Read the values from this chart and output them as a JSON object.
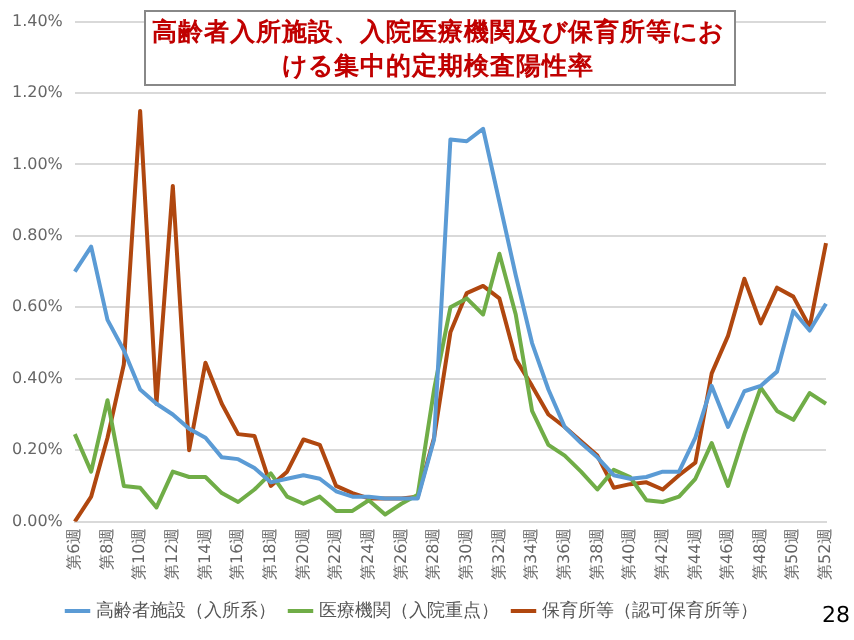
{
  "chart_data": {
    "type": "line",
    "title": "高齢者入所施設、入院医療機関及び保育所等における集中的定期検査陽性率",
    "categories": [
      "第6週",
      null,
      "第8週",
      null,
      "第10週",
      null,
      "第12週",
      null,
      "第14週",
      null,
      "第16週",
      null,
      "第18週",
      null,
      "第20週",
      null,
      "第22週",
      null,
      "第24週",
      null,
      "第26週",
      null,
      "第28週",
      null,
      "第30週",
      null,
      "第32週",
      null,
      "第34週",
      null,
      "第36週",
      null,
      "第38週",
      null,
      "第40週",
      null,
      "第42週",
      null,
      "第44週",
      null,
      "第46週",
      null,
      "第48週",
      null,
      "第50週",
      null,
      "第52週"
    ],
    "series": [
      {
        "name": "高齢者施設（入所系）",
        "color": "#5b9bd5",
        "values": [
          0.7,
          0.77,
          0.565,
          0.48,
          0.37,
          0.33,
          0.3,
          0.26,
          0.235,
          0.18,
          0.175,
          0.15,
          0.11,
          0.12,
          0.13,
          0.12,
          0.085,
          0.07,
          0.07,
          0.065,
          0.065,
          0.065,
          0.23,
          1.07,
          1.065,
          1.1,
          0.895,
          0.69,
          0.5,
          0.37,
          0.265,
          0.22,
          0.18,
          0.13,
          0.12,
          0.125,
          0.14,
          0.14,
          0.235,
          0.38,
          0.265,
          0.365,
          0.38,
          0.42,
          0.59,
          0.535,
          0.61
        ]
      },
      {
        "name": "医療機関（入院重点）",
        "color": "#70ad47",
        "values": [
          0.245,
          0.14,
          0.34,
          0.1,
          0.095,
          0.04,
          0.14,
          0.125,
          0.125,
          0.08,
          0.055,
          0.09,
          0.135,
          0.07,
          0.05,
          0.07,
          0.03,
          0.03,
          0.06,
          0.02,
          0.05,
          0.075,
          0.37,
          0.6,
          0.625,
          0.58,
          0.75,
          0.58,
          0.31,
          0.215,
          0.185,
          0.14,
          0.09,
          0.145,
          0.125,
          0.06,
          0.055,
          0.07,
          0.12,
          0.22,
          0.1,
          0.245,
          0.375,
          0.31,
          0.285,
          0.36,
          0.33
        ]
      },
      {
        "name": "保育所等（認可保育所等）",
        "color": "#b0470f",
        "values": [
          0,
          0.07,
          0.235,
          0.44,
          1.15,
          0.33,
          0.94,
          0.2,
          0.445,
          0.33,
          0.245,
          0.24,
          0.1,
          0.14,
          0.23,
          0.215,
          0.1,
          0.08,
          0.065,
          0.065,
          0.065,
          0.07,
          0.235,
          0.53,
          0.64,
          0.66,
          0.625,
          0.455,
          0.38,
          0.3,
          0.265,
          0.225,
          0.185,
          0.095,
          0.105,
          0.11,
          0.09,
          0.13,
          0.165,
          0.415,
          0.52,
          0.68,
          0.555,
          0.655,
          0.63,
          0.545,
          0.78
        ]
      }
    ],
    "ylim": [
      0,
      1.4
    ],
    "yticks": [
      {
        "value": 0,
        "label": "0.00%"
      },
      {
        "value": 0.2,
        "label": "0.20%"
      },
      {
        "value": 0.4,
        "label": "0.40%"
      },
      {
        "value": 0.6,
        "label": "0.60%"
      },
      {
        "value": 0.8,
        "label": "0.80%"
      },
      {
        "value": 1.0,
        "label": "1.00%"
      },
      {
        "value": 1.2,
        "label": "1.20%"
      },
      {
        "value": 1.4,
        "label": "1.40%"
      }
    ],
    "grid": "y",
    "legend": "bottom",
    "marker": "none",
    "line_style": "solid",
    "annotations": [
      "28"
    ]
  }
}
